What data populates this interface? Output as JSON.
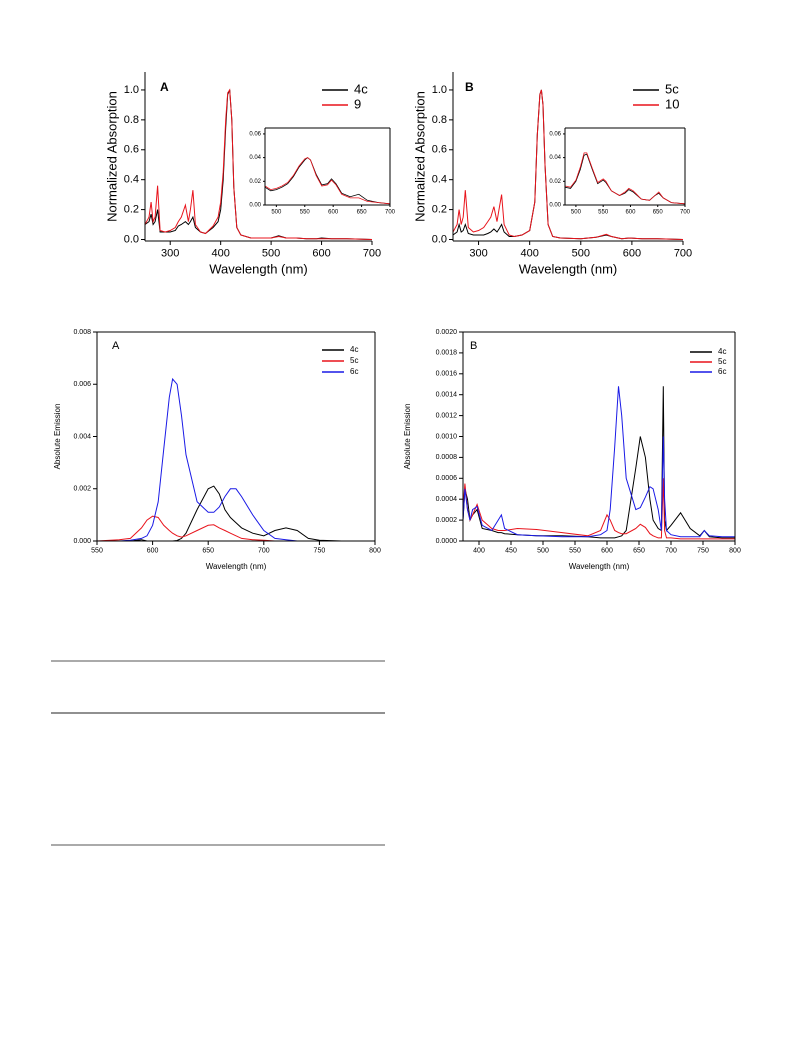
{
  "chart_data": [
    {
      "type": "line",
      "label": "A",
      "xlabel": "Wavelength (nm)",
      "ylabel": "Normalized Absorption",
      "xlim": [
        250,
        700
      ],
      "ylim": [
        -0.01,
        1.12
      ],
      "xticks": [
        300,
        400,
        500,
        600,
        700
      ],
      "yticks": [
        {
          "value": 0,
          "label": "0.0"
        },
        0.2,
        0.4,
        0.6,
        0.8,
        {
          "value": 1,
          "label": "1.0"
        }
      ],
      "legend": "upper right",
      "x": [
        250,
        258,
        262,
        266,
        270,
        275,
        280,
        290,
        300,
        310,
        316,
        322,
        330,
        336,
        340,
        345,
        350,
        360,
        370,
        385,
        395,
        400,
        405,
        410,
        414,
        418,
        422,
        426,
        432,
        440,
        460,
        500,
        515,
        530,
        550,
        570,
        590,
        600,
        620,
        650,
        700
      ],
      "series": [
        {
          "name": "4c",
          "color": "#000000",
          "values": [
            0.1,
            0.12,
            0.17,
            0.1,
            0.12,
            0.2,
            0.05,
            0.05,
            0.05,
            0.06,
            0.09,
            0.1,
            0.12,
            0.1,
            0.12,
            0.15,
            0.08,
            0.05,
            0.04,
            0.08,
            0.12,
            0.2,
            0.4,
            0.75,
            0.97,
            1.0,
            0.8,
            0.35,
            0.08,
            0.03,
            0.01,
            0.01,
            0.025,
            0.01,
            0.01,
            0.005,
            0.005,
            0.01,
            0.005,
            0.005,
            0
          ]
        },
        {
          "name": "9",
          "color": "#e8141c",
          "values": [
            0.1,
            0.15,
            0.25,
            0.12,
            0.15,
            0.36,
            0.06,
            0.05,
            0.06,
            0.08,
            0.12,
            0.15,
            0.23,
            0.12,
            0.2,
            0.33,
            0.1,
            0.05,
            0.04,
            0.09,
            0.15,
            0.25,
            0.45,
            0.8,
            0.98,
            1.0,
            0.8,
            0.35,
            0.08,
            0.03,
            0.01,
            0.01,
            0.02,
            0.01,
            0.01,
            0.005,
            0.005,
            0.005,
            0.005,
            0.005,
            0
          ]
        }
      ]
    },
    {
      "type": "line",
      "xlim": [
        480,
        700
      ],
      "ylim": [
        0,
        0.065
      ],
      "xticks": [
        500,
        550,
        600,
        650,
        700
      ],
      "yticks": [
        {
          "value": 0,
          "label": "0.00"
        },
        {
          "value": 0.02,
          "label": "0.02"
        },
        {
          "value": 0.04,
          "label": "0.04"
        },
        {
          "value": 0.06,
          "label": "0.06"
        }
      ],
      "x": [
        480,
        490,
        500,
        510,
        520,
        530,
        540,
        550,
        555,
        560,
        570,
        580,
        590,
        597,
        605,
        615,
        630,
        645,
        660,
        680,
        700
      ],
      "series": [
        {
          "color": "#000000",
          "values": [
            0.015,
            0.012,
            0.013,
            0.015,
            0.018,
            0.024,
            0.032,
            0.038,
            0.04,
            0.038,
            0.026,
            0.017,
            0.018,
            0.022,
            0.018,
            0.01,
            0.007,
            0.009,
            0.004,
            0.002,
            0.001
          ]
        },
        {
          "color": "#e8141c",
          "values": [
            0.016,
            0.013,
            0.014,
            0.016,
            0.019,
            0.025,
            0.033,
            0.039,
            0.04,
            0.038,
            0.025,
            0.016,
            0.017,
            0.021,
            0.017,
            0.009,
            0.006,
            0.006,
            0.003,
            0.002,
            0.001
          ]
        }
      ]
    },
    {
      "type": "line",
      "label": "B",
      "xlabel": "Wavelength (nm)",
      "ylabel": "Normalized Absorption",
      "xlim": [
        250,
        700
      ],
      "ylim": [
        -0.01,
        1.12
      ],
      "xticks": [
        300,
        400,
        500,
        600,
        700
      ],
      "yticks": [
        {
          "value": 0,
          "label": "0.0"
        },
        0.2,
        0.4,
        0.6,
        0.8,
        {
          "value": 1,
          "label": "1.0"
        }
      ],
      "legend": "upper right",
      "x": [
        250,
        258,
        262,
        266,
        270,
        274,
        280,
        290,
        300,
        310,
        318,
        324,
        330,
        336,
        340,
        345,
        350,
        360,
        370,
        385,
        400,
        410,
        415,
        420,
        423,
        426,
        430,
        436,
        445,
        460,
        500,
        515,
        530,
        550,
        560,
        580,
        595,
        620,
        650,
        700
      ],
      "series": [
        {
          "name": "5c",
          "color": "#000000",
          "values": [
            0.03,
            0.05,
            0.1,
            0.05,
            0.06,
            0.1,
            0.04,
            0.03,
            0.03,
            0.03,
            0.04,
            0.05,
            0.07,
            0.05,
            0.07,
            0.1,
            0.05,
            0.02,
            0.02,
            0.03,
            0.06,
            0.25,
            0.7,
            0.97,
            1.0,
            0.9,
            0.5,
            0.1,
            0.02,
            0.01,
            0.005,
            0.01,
            0.015,
            0.03,
            0.02,
            0.005,
            0.01,
            0.005,
            0.005,
            0
          ]
        },
        {
          "name": "10",
          "color": "#e8141c",
          "values": [
            0.05,
            0.1,
            0.2,
            0.1,
            0.15,
            0.33,
            0.08,
            0.05,
            0.06,
            0.08,
            0.12,
            0.15,
            0.22,
            0.12,
            0.2,
            0.3,
            0.1,
            0.03,
            0.02,
            0.03,
            0.06,
            0.25,
            0.7,
            0.97,
            1.0,
            0.9,
            0.5,
            0.1,
            0.02,
            0.01,
            0.005,
            0.01,
            0.015,
            0.035,
            0.02,
            0.005,
            0.01,
            0.005,
            0.005,
            0
          ]
        }
      ]
    },
    {
      "type": "line",
      "xlim": [
        480,
        700
      ],
      "ylim": [
        0,
        0.065
      ],
      "xticks": [
        500,
        550,
        600,
        650,
        700
      ],
      "yticks": [
        {
          "value": 0,
          "label": "0.00"
        },
        {
          "value": 0.02,
          "label": "0.02"
        },
        {
          "value": 0.04,
          "label": "0.04"
        },
        {
          "value": 0.06,
          "label": "0.06"
        }
      ],
      "x": [
        480,
        490,
        500,
        508,
        515,
        520,
        530,
        540,
        550,
        555,
        565,
        580,
        590,
        597,
        605,
        620,
        635,
        645,
        652,
        660,
        675,
        700
      ],
      "series": [
        {
          "color": "#000000",
          "values": [
            0.015,
            0.014,
            0.02,
            0.03,
            0.042,
            0.043,
            0.03,
            0.018,
            0.021,
            0.019,
            0.012,
            0.008,
            0.01,
            0.013,
            0.011,
            0.005,
            0.004,
            0.008,
            0.01,
            0.006,
            0.002,
            0.001
          ]
        },
        {
          "color": "#e8141c",
          "values": [
            0.016,
            0.015,
            0.021,
            0.032,
            0.044,
            0.044,
            0.031,
            0.019,
            0.022,
            0.02,
            0.012,
            0.008,
            0.011,
            0.014,
            0.012,
            0.005,
            0.004,
            0.008,
            0.011,
            0.006,
            0.002,
            0.001
          ]
        }
      ]
    },
    {
      "type": "line",
      "label": "A",
      "xlabel": "Wavelength (nm)",
      "ylabel": "Absolute Emission",
      "xlim": [
        550,
        800
      ],
      "ylim": [
        0,
        0.008
      ],
      "xticks": [
        550,
        600,
        650,
        700,
        750,
        800
      ],
      "yticks": [
        {
          "value": 0,
          "label": "0.000"
        },
        {
          "value": 0.002,
          "label": "0.002"
        },
        {
          "value": 0.004,
          "label": "0.004"
        },
        {
          "value": 0.006,
          "label": "0.006"
        },
        {
          "value": 0.008,
          "label": "0.008"
        }
      ],
      "legend": "upper right",
      "x": [
        550,
        570,
        580,
        590,
        595,
        600,
        605,
        610,
        615,
        618,
        622,
        626,
        630,
        640,
        650,
        655,
        660,
        665,
        670,
        675,
        680,
        690,
        700,
        710,
        720,
        730,
        740,
        750,
        770,
        800
      ],
      "series": [
        {
          "name": "4c",
          "color": "#000000",
          "values": [
            0,
            0,
            0,
            5e-05,
            0,
            0,
            0,
            0,
            0,
            0,
            2e-05,
            0.0001,
            0.0003,
            0.0012,
            0.002,
            0.0021,
            0.0018,
            0.0012,
            0.0009,
            0.0007,
            0.0005,
            0.0003,
            0.0002,
            0.0004,
            0.0005,
            0.0004,
            0.0001,
            3e-05,
            0,
            0
          ]
        },
        {
          "name": "5c",
          "color": "#e8141c",
          "values": [
            0,
            5e-05,
            0.0001,
            0.0005,
            0.0008,
            0.00095,
            0.0009,
            0.0006,
            0.0004,
            0.0003,
            0.0002,
            0.00015,
            0.0002,
            0.0004,
            0.0006,
            0.00062,
            0.0005,
            0.0004,
            0.0003,
            0.0002,
            0.0001,
            5e-05,
            3e-05,
            0,
            0,
            0,
            0,
            0,
            0,
            0
          ]
        },
        {
          "name": "6c",
          "color": "#1a1ae6",
          "values": [
            0,
            0,
            3e-05,
            0.0001,
            0.0002,
            0.0006,
            0.0015,
            0.0035,
            0.0055,
            0.0062,
            0.006,
            0.0048,
            0.0033,
            0.0015,
            0.0011,
            0.0011,
            0.0013,
            0.0017,
            0.002,
            0.002,
            0.0017,
            0.001,
            0.0004,
            0.0001,
            5e-05,
            0,
            0,
            0,
            0,
            0
          ]
        }
      ]
    },
    {
      "type": "line",
      "label": "B",
      "xlabel": "Wavelength (nm)",
      "ylabel": "Absolute Emission",
      "xlim": [
        375,
        800
      ],
      "ylim": [
        0,
        0.002
      ],
      "xticks": [
        400,
        450,
        500,
        550,
        600,
        650,
        700,
        750,
        800
      ],
      "yticks": [
        {
          "value": 0,
          "label": "0.0000"
        },
        {
          "value": 0.0002,
          "label": "0.0002"
        },
        {
          "value": 0.0004,
          "label": "0.0004"
        },
        {
          "value": 0.0006,
          "label": "0.0006"
        },
        {
          "value": 0.0008,
          "label": "0.0008"
        },
        {
          "value": 0.001,
          "label": "0.0010"
        },
        {
          "value": 0.0012,
          "label": "0.0012"
        },
        {
          "value": 0.0014,
          "label": "0.0014"
        },
        {
          "value": 0.0016,
          "label": "0.0016"
        },
        {
          "value": 0.0018,
          "label": "0.0018"
        },
        {
          "value": 0.002,
          "label": "0.0020"
        }
      ],
      "legend": "upper right",
      "x": [
        375,
        378,
        382,
        386,
        390,
        397,
        405,
        420,
        430,
        435,
        440,
        460,
        490,
        530,
        570,
        590,
        600,
        605,
        612,
        618,
        623,
        630,
        645,
        652,
        660,
        667,
        672,
        680,
        685,
        688,
        690,
        693,
        700,
        715,
        730,
        745,
        752,
        760,
        780,
        800
      ],
      "series": [
        {
          "name": "4c",
          "color": "#000000",
          "values": [
            0.0002,
            0.0005,
            0.0004,
            0.0002,
            0.00025,
            0.0003,
            0.00012,
            0.0001,
            8e-05,
            8e-05,
            7e-05,
            6e-05,
            5e-05,
            5e-05,
            4e-05,
            3e-05,
            3e-05,
            3e-05,
            3e-05,
            4e-05,
            5e-05,
            0.0001,
            0.0007,
            0.001,
            0.0008,
            0.0004,
            0.0002,
            0.00012,
            0.0001,
            0.00148,
            0.0002,
            0.0001,
            0.00015,
            0.00027,
            0.00012,
            5e-05,
            0.0001,
            4e-05,
            3e-05,
            3e-05
          ]
        },
        {
          "name": "5c",
          "color": "#e8141c",
          "values": [
            0.0003,
            0.00055,
            0.0003,
            0.0002,
            0.00025,
            0.00035,
            0.0002,
            0.00012,
            0.0001,
            0.0001,
            0.0001,
            0.00012,
            0.00011,
            8e-05,
            5e-05,
            0.0001,
            0.00025,
            0.0002,
            0.0001,
            8e-05,
            7e-05,
            7e-05,
            0.00012,
            0.00016,
            0.00013,
            7e-05,
            5e-05,
            3e-05,
            3e-05,
            0.0006,
            0.0001,
            3e-05,
            3e-05,
            2e-05,
            2e-05,
            2e-05,
            2e-05,
            2e-05,
            2e-05,
            2e-05
          ]
        },
        {
          "name": "6c",
          "color": "#1a1ae6",
          "values": [
            0.0002,
            0.0005,
            0.0003,
            0.0002,
            0.0003,
            0.00033,
            0.00015,
            0.0001,
            0.0002,
            0.00025,
            0.00012,
            6e-05,
            5e-05,
            4e-05,
            4e-05,
            6e-05,
            0.0001,
            0.0003,
            0.0009,
            0.00148,
            0.0012,
            0.0006,
            0.0003,
            0.00032,
            0.00042,
            0.00052,
            0.0005,
            0.0003,
            0.0001,
            0.001,
            0.0004,
            0.0001,
            6e-05,
            4e-05,
            4e-05,
            4e-05,
            0.0001,
            5e-05,
            4e-05,
            4e-05
          ]
        }
      ]
    }
  ]
}
